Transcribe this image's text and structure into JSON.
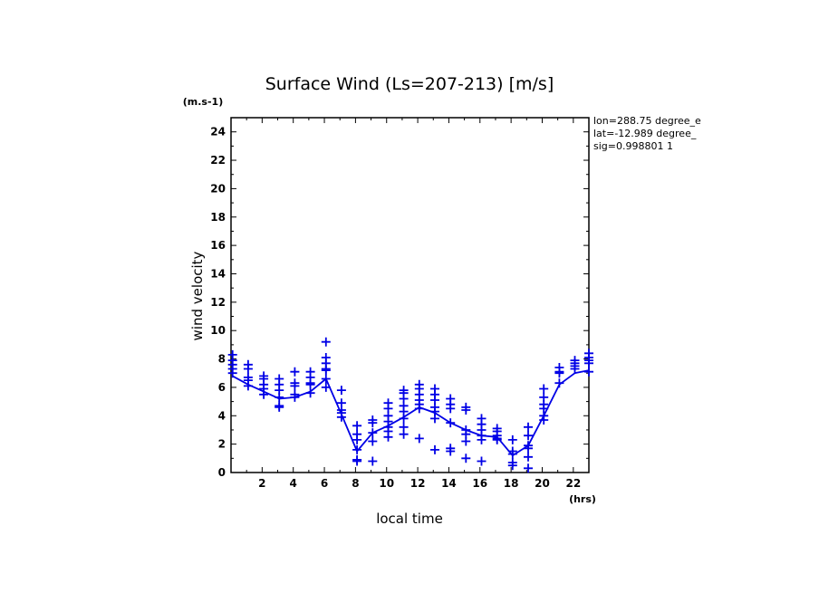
{
  "chart_data": {
    "type": "scatter",
    "title": "Surface Wind  (Ls=207-213) [m/s]",
    "xlabel": "local time",
    "ylabel": "wind velocity",
    "x_unit": "(hrs)",
    "y_unit": "(m.s-1)",
    "xlim": [
      0,
      23
    ],
    "ylim": [
      0,
      25
    ],
    "x_ticks": [
      2,
      4,
      6,
      8,
      10,
      12,
      14,
      16,
      18,
      20,
      22
    ],
    "y_ticks": [
      0,
      2,
      4,
      6,
      8,
      10,
      12,
      14,
      16,
      18,
      20,
      22,
      24
    ],
    "annotations": [
      "lon=288.75 degree_e",
      "lat=-12.989 degree_",
      "sig=0.998801 1"
    ],
    "color": "#0000e6",
    "mean_line": {
      "x": [
        0.1,
        1.1,
        2.1,
        3.1,
        4.1,
        5.1,
        6.1,
        7.1,
        8.1,
        9.1,
        10.1,
        11.1,
        12.1,
        13.1,
        14.1,
        15.1,
        16.1,
        17.1,
        18.1,
        19.1,
        20.1,
        21.1,
        22.1,
        23.0
      ],
      "y": [
        6.8,
        6.2,
        5.7,
        5.2,
        5.3,
        5.7,
        6.6,
        4.1,
        1.5,
        2.8,
        3.3,
        3.9,
        4.6,
        4.2,
        3.5,
        3.0,
        2.6,
        2.5,
        1.2,
        1.9,
        4.0,
        6.2,
        7.0,
        7.2
      ]
    },
    "scatter": [
      {
        "x": 0.1,
        "y": [
          8.3,
          7.9,
          7.6,
          7.3,
          7.0
        ]
      },
      {
        "x": 1.1,
        "y": [
          7.6,
          7.3,
          6.7,
          6.5,
          6.1
        ]
      },
      {
        "x": 2.1,
        "y": [
          6.8,
          6.6,
          6.2,
          5.9,
          5.5
        ]
      },
      {
        "x": 3.1,
        "y": [
          6.6,
          6.2,
          5.8,
          5.3,
          4.7,
          4.6
        ]
      },
      {
        "x": 4.1,
        "y": [
          7.1,
          6.3,
          6.1,
          5.5,
          5.3
        ]
      },
      {
        "x": 5.1,
        "y": [
          7.1,
          6.7,
          6.3,
          6.2,
          5.6
        ]
      },
      {
        "x": 6.1,
        "y": [
          9.2,
          8.1,
          7.7,
          7.3,
          7.2,
          6.6,
          6.0
        ]
      },
      {
        "x": 7.1,
        "y": [
          5.8,
          4.9,
          4.4,
          4.2,
          3.9
        ]
      },
      {
        "x": 8.1,
        "y": [
          3.3,
          2.7,
          2.3,
          1.6,
          0.9,
          0.8
        ]
      },
      {
        "x": 9.1,
        "y": [
          3.7,
          3.5,
          2.8,
          2.2,
          0.8
        ]
      },
      {
        "x": 10.1,
        "y": [
          4.9,
          4.5,
          4.0,
          3.6,
          3.2,
          2.9,
          2.5
        ]
      },
      {
        "x": 11.1,
        "y": [
          5.8,
          5.6,
          5.2,
          4.7,
          4.3,
          3.8,
          3.2,
          2.7
        ]
      },
      {
        "x": 12.1,
        "y": [
          6.2,
          5.9,
          5.5,
          5.1,
          4.8,
          4.5,
          2.4
        ]
      },
      {
        "x": 13.1,
        "y": [
          5.9,
          5.5,
          5.1,
          4.6,
          4.3,
          3.8,
          1.6
        ]
      },
      {
        "x": 14.1,
        "y": [
          5.2,
          4.8,
          4.5,
          3.5,
          1.7,
          1.5
        ]
      },
      {
        "x": 15.1,
        "y": [
          4.6,
          4.4,
          3.0,
          2.7,
          2.2,
          1.0
        ]
      },
      {
        "x": 16.1,
        "y": [
          3.8,
          3.4,
          3.0,
          2.6,
          2.3,
          0.8
        ]
      },
      {
        "x": 17.1,
        "y": [
          3.1,
          2.9,
          2.6,
          2.4,
          2.3
        ]
      },
      {
        "x": 18.1,
        "y": [
          2.3,
          1.5,
          1.3,
          0.7,
          0.5
        ]
      },
      {
        "x": 19.1,
        "y": [
          3.2,
          2.6,
          1.9,
          1.7,
          1.1,
          0.3
        ]
      },
      {
        "x": 20.1,
        "y": [
          5.9,
          5.3,
          4.8,
          4.5,
          4.0,
          3.7
        ]
      },
      {
        "x": 21.1,
        "y": [
          7.4,
          7.1,
          7.0,
          6.3
        ]
      },
      {
        "x": 22.1,
        "y": [
          7.9,
          7.7,
          7.5,
          7.3
        ]
      },
      {
        "x": 23.0,
        "y": [
          8.4,
          8.1,
          7.9,
          7.7,
          7.1
        ]
      }
    ]
  }
}
